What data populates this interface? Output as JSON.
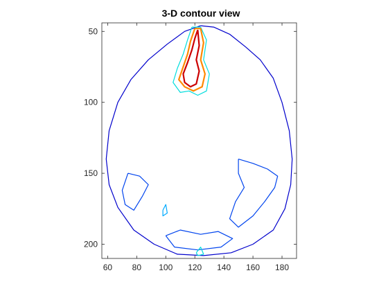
{
  "chart_data": {
    "type": "contour",
    "title": "3-D contour view",
    "xlabel": "",
    "ylabel": "",
    "xlim": [
      56,
      190
    ],
    "ylim": [
      210,
      44
    ],
    "y_axis_reversed": true,
    "grid": false,
    "legend": "none",
    "xticks": [
      60,
      80,
      100,
      120,
      140,
      160,
      180
    ],
    "yticks": [
      50,
      100,
      150,
      200
    ],
    "level_colors": [
      "#0000cc",
      "#0044ee",
      "#00aaff",
      "#00dddd",
      "#ccdd00",
      "#ff8800",
      "#cc0000"
    ],
    "contours": [
      {
        "name": "skull-outline",
        "level": 0,
        "points": [
          [
            124,
            46
          ],
          [
            133,
            47
          ],
          [
            144,
            52
          ],
          [
            155,
            61
          ],
          [
            165,
            70
          ],
          [
            174,
            83
          ],
          [
            180,
            100
          ],
          [
            185,
            120
          ],
          [
            187,
            140
          ],
          [
            186,
            158
          ],
          [
            182,
            175
          ],
          [
            174,
            190
          ],
          [
            160,
            200
          ],
          [
            145,
            206
          ],
          [
            126,
            208
          ],
          [
            108,
            207
          ],
          [
            92,
            200
          ],
          [
            78,
            190
          ],
          [
            67,
            174
          ],
          [
            61,
            158
          ],
          [
            59,
            140
          ],
          [
            61,
            120
          ],
          [
            67,
            100
          ],
          [
            76,
            84
          ],
          [
            88,
            70
          ],
          [
            101,
            59
          ],
          [
            113,
            50
          ],
          [
            124,
            46
          ]
        ]
      },
      {
        "name": "inner-cortex-right",
        "level": 1,
        "points": [
          [
            150,
            140
          ],
          [
            160,
            143
          ],
          [
            170,
            147
          ],
          [
            177,
            152
          ],
          [
            175,
            160
          ],
          [
            168,
            170
          ],
          [
            160,
            180
          ],
          [
            150,
            188
          ],
          [
            144,
            182
          ],
          [
            148,
            170
          ],
          [
            154,
            160
          ],
          [
            150,
            150
          ],
          [
            150,
            140
          ]
        ]
      },
      {
        "name": "inner-cortex-left",
        "level": 1,
        "points": [
          [
            74,
            150
          ],
          [
            82,
            152
          ],
          [
            88,
            158
          ],
          [
            84,
            166
          ],
          [
            78,
            176
          ],
          [
            72,
            172
          ],
          [
            70,
            162
          ],
          [
            74,
            150
          ]
        ]
      },
      {
        "name": "inner-posterior",
        "level": 1,
        "points": [
          [
            100,
            194
          ],
          [
            110,
            190
          ],
          [
            124,
            193
          ],
          [
            136,
            191
          ],
          [
            146,
            196
          ],
          [
            138,
            202
          ],
          [
            122,
            204
          ],
          [
            106,
            202
          ],
          [
            100,
            194
          ]
        ]
      },
      {
        "name": "frontal-anomaly-outer",
        "level": 3,
        "points": [
          [
            118,
            47
          ],
          [
            124,
            47
          ],
          [
            128,
            56
          ],
          [
            126,
            70
          ],
          [
            130,
            80
          ],
          [
            128,
            92
          ],
          [
            122,
            95
          ],
          [
            116,
            92
          ],
          [
            110,
            93
          ],
          [
            105,
            86
          ],
          [
            108,
            76
          ],
          [
            112,
            66
          ],
          [
            115,
            56
          ],
          [
            118,
            47
          ]
        ]
      },
      {
        "name": "frontal-anomaly-mid",
        "level": 5,
        "points": [
          [
            120,
            48
          ],
          [
            124,
            48
          ],
          [
            126,
            58
          ],
          [
            124,
            70
          ],
          [
            127,
            80
          ],
          [
            125,
            89
          ],
          [
            119,
            92
          ],
          [
            113,
            89
          ],
          [
            109,
            84
          ],
          [
            112,
            75
          ],
          [
            115,
            66
          ],
          [
            117,
            57
          ],
          [
            120,
            48
          ]
        ]
      },
      {
        "name": "frontal-anomaly-core",
        "level": 6,
        "points": [
          [
            122,
            49
          ],
          [
            123,
            60
          ],
          [
            121,
            70
          ],
          [
            123,
            78
          ],
          [
            121,
            87
          ],
          [
            117,
            89
          ],
          [
            113,
            86
          ],
          [
            112,
            80
          ],
          [
            115,
            72
          ],
          [
            118,
            63
          ],
          [
            120,
            55
          ],
          [
            122,
            49
          ]
        ]
      },
      {
        "name": "cyan-patch-a",
        "level": 2,
        "points": [
          [
            98,
            176
          ],
          [
            100,
            172
          ],
          [
            101,
            178
          ],
          [
            98,
            180
          ],
          [
            98,
            176
          ]
        ]
      },
      {
        "name": "cyan-patch-b",
        "level": 3,
        "points": [
          [
            121,
            206
          ],
          [
            124,
            202
          ],
          [
            126,
            207
          ],
          [
            122,
            208
          ],
          [
            121,
            206
          ]
        ]
      }
    ]
  }
}
